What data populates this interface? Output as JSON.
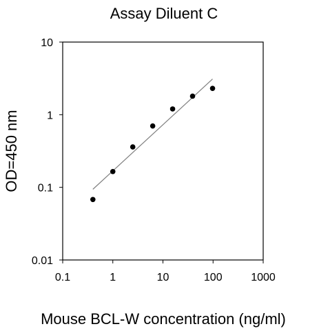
{
  "chart_data": {
    "type": "scatter",
    "title": "Assay Diluent C",
    "xlabel": "Mouse BCL-W concentration (ng/ml)",
    "ylabel": "OD=450 nm",
    "x_scale": "log",
    "y_scale": "log",
    "xlim": [
      0.1,
      1000
    ],
    "ylim": [
      0.01,
      10
    ],
    "x_ticks": [
      "0.1",
      "1",
      "10",
      "100",
      "1000"
    ],
    "y_ticks": [
      "0.01",
      "0.1",
      "1",
      "10"
    ],
    "grid": false,
    "legend": "none",
    "points": [
      {
        "x": 0.4,
        "y": 0.068
      },
      {
        "x": 1,
        "y": 0.165
      },
      {
        "x": 2.5,
        "y": 0.36
      },
      {
        "x": 6.25,
        "y": 0.7
      },
      {
        "x": 15.6,
        "y": 1.2
      },
      {
        "x": 39,
        "y": 1.8
      },
      {
        "x": 97.7,
        "y": 2.3
      }
    ],
    "trendline": [
      {
        "x": 0.4,
        "y": 0.094
      },
      {
        "x": 97.7,
        "y": 3.1
      }
    ],
    "colors": {
      "marker": "#000000",
      "line": "#7f7f7f",
      "axis": "#000000"
    }
  }
}
